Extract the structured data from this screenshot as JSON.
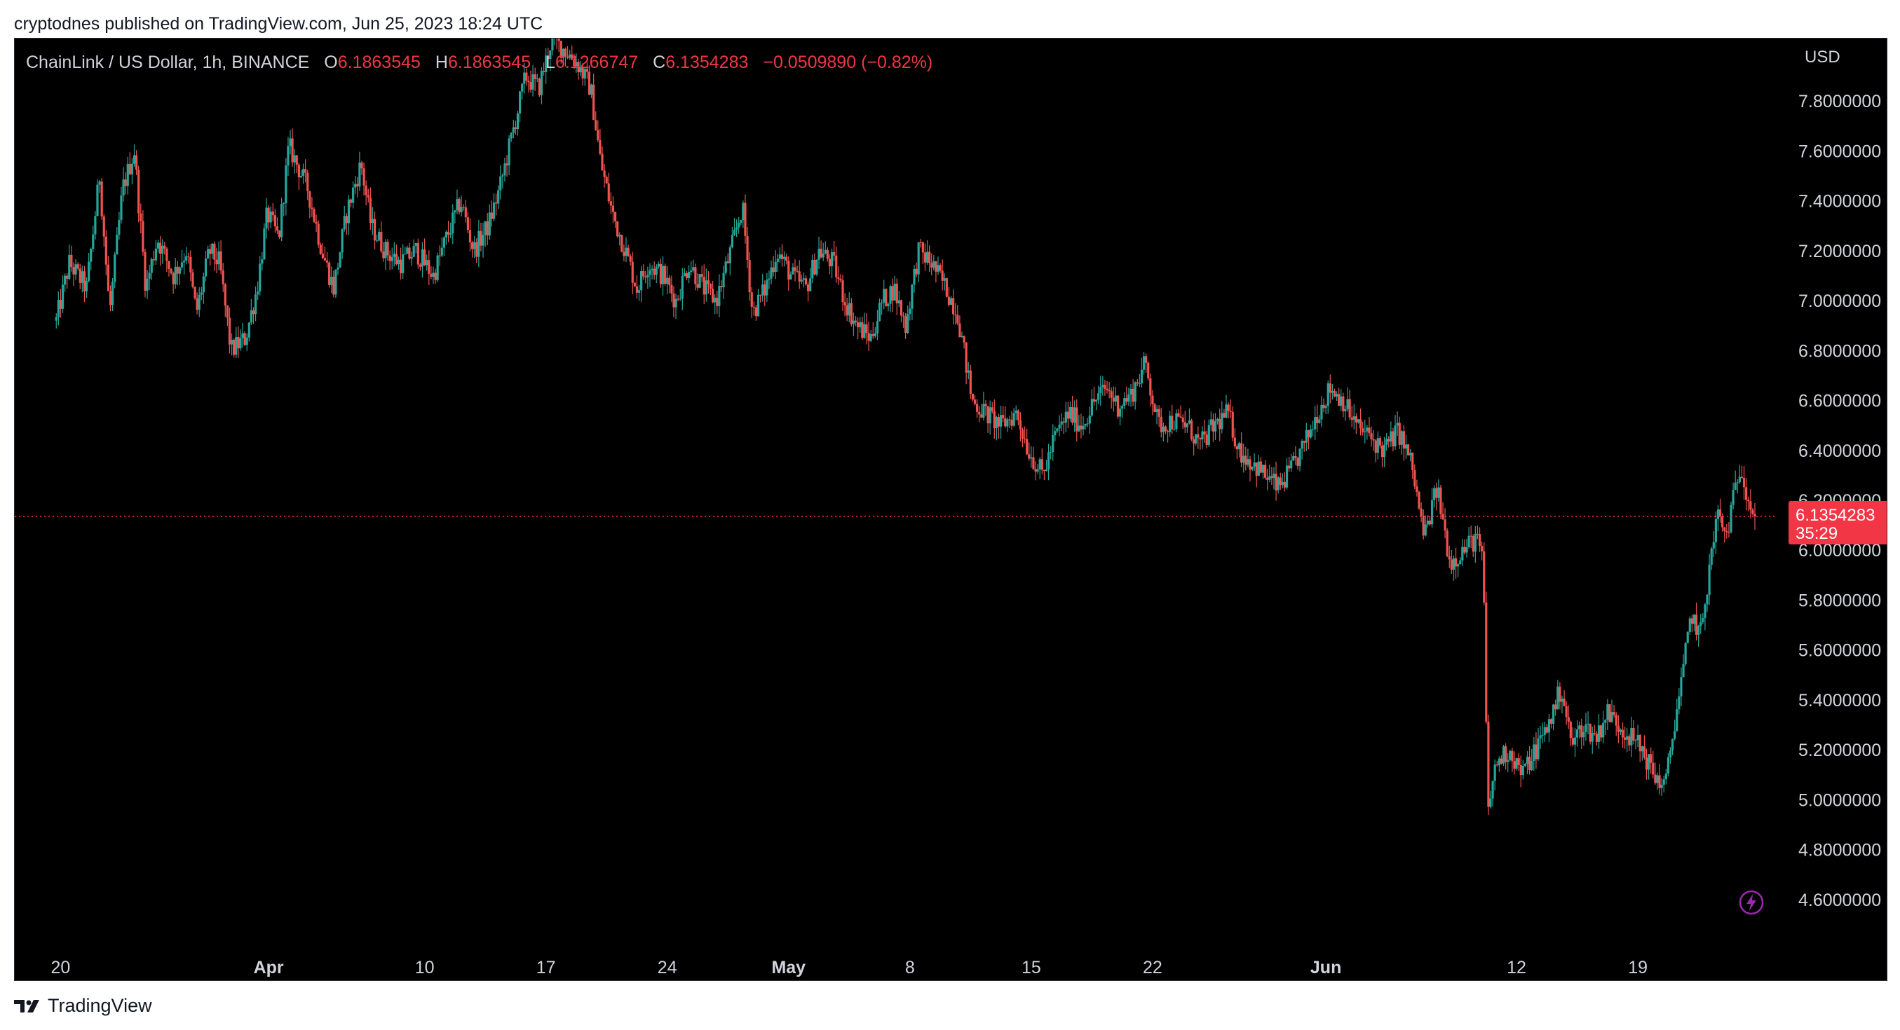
{
  "published_text": "cryptodnes published on TradingView.com, Jun 25, 2023 18:24 UTC",
  "legend": {
    "symbol": "ChainLink / US Dollar, 1h, BINANCE",
    "o_label": "O",
    "o_value": "6.1863545",
    "h_label": "H",
    "h_value": "6.1863545",
    "l_label": "L",
    "l_value": "6.1266747",
    "c_label": "C",
    "c_value": "6.1354283",
    "change": "−0.0509890 (−0.82%)"
  },
  "footer_brand": "TradingView",
  "last_price_badge": {
    "price": "6.1354283",
    "countdown": "35:29"
  },
  "colors": {
    "up": "#26a69a",
    "down": "#ef5350",
    "badge": "#f23645",
    "background": "#000000",
    "axis_text": "#d1d4dc"
  },
  "icons": {
    "logo": "tradingview-logo-icon",
    "bolt": "lightning-bolt-icon"
  },
  "chart_data": {
    "type": "candlestick",
    "interval": "1h",
    "currency": "USD",
    "ylim": [
      4.4,
      8.0
    ],
    "y_ticks": [
      "7.8000000",
      "7.6000000",
      "7.4000000",
      "7.2000000",
      "7.0000000",
      "6.8000000",
      "6.6000000",
      "6.4000000",
      "6.2000000",
      "6.0000000",
      "5.8000000",
      "5.6000000",
      "5.4000000",
      "5.2000000",
      "5.0000000",
      "4.8000000",
      "4.6000000"
    ],
    "x_ticks": [
      {
        "label": "20",
        "date": "2023-03-20",
        "bold": false
      },
      {
        "label": "Apr",
        "date": "2023-04-01",
        "bold": true
      },
      {
        "label": "10",
        "date": "2023-04-10",
        "bold": false
      },
      {
        "label": "17",
        "date": "2023-04-17",
        "bold": false
      },
      {
        "label": "24",
        "date": "2023-04-24",
        "bold": false
      },
      {
        "label": "May",
        "date": "2023-05-01",
        "bold": true
      },
      {
        "label": "8",
        "date": "2023-05-08",
        "bold": false
      },
      {
        "label": "15",
        "date": "2023-05-15",
        "bold": false
      },
      {
        "label": "22",
        "date": "2023-05-22",
        "bold": false
      },
      {
        "label": "Jun",
        "date": "2023-06-01",
        "bold": true
      },
      {
        "label": "12",
        "date": "2023-06-12",
        "bold": false
      },
      {
        "label": "19",
        "date": "2023-06-19",
        "bold": false
      }
    ],
    "last_price": 6.1354283,
    "price_path": [
      {
        "date": "2023-03-19T18:00",
        "price": 6.92
      },
      {
        "date": "2023-03-20T12:00",
        "price": 7.15
      },
      {
        "date": "2023-03-21T12:00",
        "price": 7.05
      },
      {
        "date": "2023-03-22T06:00",
        "price": 7.5
      },
      {
        "date": "2023-03-22T20:00",
        "price": 6.95
      },
      {
        "date": "2023-03-23T14:00",
        "price": 7.45
      },
      {
        "date": "2023-03-24T06:00",
        "price": 7.6
      },
      {
        "date": "2023-03-24T22:00",
        "price": 7.05
      },
      {
        "date": "2023-03-25T14:00",
        "price": 7.25
      },
      {
        "date": "2023-03-26T12:00",
        "price": 7.1
      },
      {
        "date": "2023-03-27T06:00",
        "price": 7.2
      },
      {
        "date": "2023-03-27T20:00",
        "price": 6.95
      },
      {
        "date": "2023-03-28T14:00",
        "price": 7.2
      },
      {
        "date": "2023-03-29T04:00",
        "price": 7.15
      },
      {
        "date": "2023-03-29T20:00",
        "price": 6.8
      },
      {
        "date": "2023-03-30T16:00",
        "price": 6.85
      },
      {
        "date": "2023-03-31T08:00",
        "price": 7.05
      },
      {
        "date": "2023-03-31T22:00",
        "price": 7.35
      },
      {
        "date": "2023-04-01T14:00",
        "price": 7.25
      },
      {
        "date": "2023-04-02T04:00",
        "price": 7.62
      },
      {
        "date": "2023-04-03T06:00",
        "price": 7.45
      },
      {
        "date": "2023-04-04T02:00",
        "price": 7.2
      },
      {
        "date": "2023-04-04T18:00",
        "price": 7.05
      },
      {
        "date": "2023-04-05T12:00",
        "price": 7.35
      },
      {
        "date": "2023-04-06T08:00",
        "price": 7.55
      },
      {
        "date": "2023-04-06T22:00",
        "price": 7.3
      },
      {
        "date": "2023-04-07T18:00",
        "price": 7.2
      },
      {
        "date": "2023-04-08T14:00",
        "price": 7.15
      },
      {
        "date": "2023-04-09T12:00",
        "price": 7.2
      },
      {
        "date": "2023-04-10T12:00",
        "price": 7.1
      },
      {
        "date": "2023-04-11T06:00",
        "price": 7.25
      },
      {
        "date": "2023-04-12T02:00",
        "price": 7.4
      },
      {
        "date": "2023-04-12T20:00",
        "price": 7.2
      },
      {
        "date": "2023-04-13T16:00",
        "price": 7.3
      },
      {
        "date": "2023-04-14T08:00",
        "price": 7.45
      },
      {
        "date": "2023-04-15T00:00",
        "price": 7.65
      },
      {
        "date": "2023-04-15T20:00",
        "price": 7.9
      },
      {
        "date": "2023-04-16T14:00",
        "price": 7.85
      },
      {
        "date": "2023-04-17T08:00",
        "price": 8.05
      },
      {
        "date": "2023-04-18T04:00",
        "price": 8.0
      },
      {
        "date": "2023-04-18T20:00",
        "price": 7.95
      },
      {
        "date": "2023-04-19T14:00",
        "price": 7.85
      },
      {
        "date": "2023-04-20T04:00",
        "price": 7.55
      },
      {
        "date": "2023-04-20T20:00",
        "price": 7.35
      },
      {
        "date": "2023-04-21T14:00",
        "price": 7.2
      },
      {
        "date": "2023-04-22T06:00",
        "price": 7.05
      },
      {
        "date": "2023-04-22T22:00",
        "price": 7.15
      },
      {
        "date": "2023-04-23T18:00",
        "price": 7.1
      },
      {
        "date": "2023-04-24T12:00",
        "price": 7.0
      },
      {
        "date": "2023-04-25T06:00",
        "price": 7.15
      },
      {
        "date": "2023-04-26T02:00",
        "price": 7.05
      },
      {
        "date": "2023-04-26T20:00",
        "price": 7.0
      },
      {
        "date": "2023-04-27T16:00",
        "price": 7.2
      },
      {
        "date": "2023-04-28T08:00",
        "price": 7.38
      },
      {
        "date": "2023-04-28T22:00",
        "price": 6.95
      },
      {
        "date": "2023-04-29T16:00",
        "price": 7.05
      },
      {
        "date": "2023-04-30T08:00",
        "price": 7.2
      },
      {
        "date": "2023-05-01T04:00",
        "price": 7.1
      },
      {
        "date": "2023-05-02T00:00",
        "price": 7.05
      },
      {
        "date": "2023-05-02T18:00",
        "price": 7.2
      },
      {
        "date": "2023-05-03T14:00",
        "price": 7.15
      },
      {
        "date": "2023-05-04T06:00",
        "price": 7.0
      },
      {
        "date": "2023-05-04T22:00",
        "price": 6.9
      },
      {
        "date": "2023-05-05T18:00",
        "price": 6.85
      },
      {
        "date": "2023-05-06T10:00",
        "price": 7.0
      },
      {
        "date": "2023-05-07T02:00",
        "price": 7.05
      },
      {
        "date": "2023-05-07T18:00",
        "price": 6.9
      },
      {
        "date": "2023-05-08T12:00",
        "price": 7.2
      },
      {
        "date": "2023-05-09T06:00",
        "price": 7.15
      },
      {
        "date": "2023-05-10T02:00",
        "price": 7.05
      },
      {
        "date": "2023-05-10T18:00",
        "price": 6.95
      },
      {
        "date": "2023-05-11T14:00",
        "price": 6.6
      },
      {
        "date": "2023-05-12T08:00",
        "price": 6.55
      },
      {
        "date": "2023-05-13T06:00",
        "price": 6.5
      },
      {
        "date": "2023-05-14T04:00",
        "price": 6.55
      },
      {
        "date": "2023-05-14T20:00",
        "price": 6.4
      },
      {
        "date": "2023-05-15T16:00",
        "price": 6.3
      },
      {
        "date": "2023-05-16T08:00",
        "price": 6.45
      },
      {
        "date": "2023-05-17T04:00",
        "price": 6.55
      },
      {
        "date": "2023-05-17T22:00",
        "price": 6.5
      },
      {
        "date": "2023-05-18T16:00",
        "price": 6.6
      },
      {
        "date": "2023-05-19T08:00",
        "price": 6.65
      },
      {
        "date": "2023-05-20T00:00",
        "price": 6.58
      },
      {
        "date": "2023-05-20T18:00",
        "price": 6.62
      },
      {
        "date": "2023-05-21T14:00",
        "price": 6.75
      },
      {
        "date": "2023-05-22T08:00",
        "price": 6.5
      },
      {
        "date": "2023-05-23T04:00",
        "price": 6.52
      },
      {
        "date": "2023-05-24T00:00",
        "price": 6.5
      },
      {
        "date": "2023-05-24T18:00",
        "price": 6.42
      },
      {
        "date": "2023-05-25T14:00",
        "price": 6.5
      },
      {
        "date": "2023-05-26T08:00",
        "price": 6.55
      },
      {
        "date": "2023-05-27T00:00",
        "price": 6.4
      },
      {
        "date": "2023-05-27T18:00",
        "price": 6.35
      },
      {
        "date": "2023-05-28T12:00",
        "price": 6.3
      },
      {
        "date": "2023-05-29T06:00",
        "price": 6.25
      },
      {
        "date": "2023-05-30T00:00",
        "price": 6.32
      },
      {
        "date": "2023-05-30T18:00",
        "price": 6.42
      },
      {
        "date": "2023-05-31T12:00",
        "price": 6.55
      },
      {
        "date": "2023-06-01T06:00",
        "price": 6.65
      },
      {
        "date": "2023-06-02T00:00",
        "price": 6.6
      },
      {
        "date": "2023-06-02T18:00",
        "price": 6.5
      },
      {
        "date": "2023-06-03T14:00",
        "price": 6.45
      },
      {
        "date": "2023-06-04T08:00",
        "price": 6.4
      },
      {
        "date": "2023-06-05T04:00",
        "price": 6.48
      },
      {
        "date": "2023-06-05T22:00",
        "price": 6.35
      },
      {
        "date": "2023-06-06T16:00",
        "price": 6.05
      },
      {
        "date": "2023-06-07T10:00",
        "price": 6.25
      },
      {
        "date": "2023-06-08T04:00",
        "price": 5.95
      },
      {
        "date": "2023-06-08T22:00",
        "price": 6.0
      },
      {
        "date": "2023-06-09T16:00",
        "price": 6.05
      },
      {
        "date": "2023-06-10T02:00",
        "price": 5.95
      },
      {
        "date": "2023-06-10T08:00",
        "price": 4.95
      },
      {
        "date": "2023-06-10T20:00",
        "price": 5.15
      },
      {
        "date": "2023-06-11T14:00",
        "price": 5.2
      },
      {
        "date": "2023-06-12T08:00",
        "price": 5.1
      },
      {
        "date": "2023-06-13T02:00",
        "price": 5.2
      },
      {
        "date": "2023-06-13T20:00",
        "price": 5.3
      },
      {
        "date": "2023-06-14T14:00",
        "price": 5.45
      },
      {
        "date": "2023-06-15T04:00",
        "price": 5.22
      },
      {
        "date": "2023-06-15T20:00",
        "price": 5.3
      },
      {
        "date": "2023-06-16T14:00",
        "price": 5.25
      },
      {
        "date": "2023-06-17T06:00",
        "price": 5.35
      },
      {
        "date": "2023-06-17T22:00",
        "price": 5.3
      },
      {
        "date": "2023-06-18T14:00",
        "price": 5.25
      },
      {
        "date": "2023-06-19T06:00",
        "price": 5.2
      },
      {
        "date": "2023-06-19T22:00",
        "price": 5.1
      },
      {
        "date": "2023-06-20T14:00",
        "price": 5.05
      },
      {
        "date": "2023-06-21T02:00",
        "price": 5.3
      },
      {
        "date": "2023-06-21T14:00",
        "price": 5.5
      },
      {
        "date": "2023-06-22T02:00",
        "price": 5.75
      },
      {
        "date": "2023-06-22T14:00",
        "price": 5.65
      },
      {
        "date": "2023-06-23T02:00",
        "price": 5.9
      },
      {
        "date": "2023-06-23T14:00",
        "price": 6.15
      },
      {
        "date": "2023-06-24T02:00",
        "price": 6.05
      },
      {
        "date": "2023-06-24T12:00",
        "price": 6.2
      },
      {
        "date": "2023-06-24T22:00",
        "price": 6.35
      },
      {
        "date": "2023-06-25T08:00",
        "price": 6.22
      },
      {
        "date": "2023-06-25T18:00",
        "price": 6.1354283
      }
    ]
  }
}
